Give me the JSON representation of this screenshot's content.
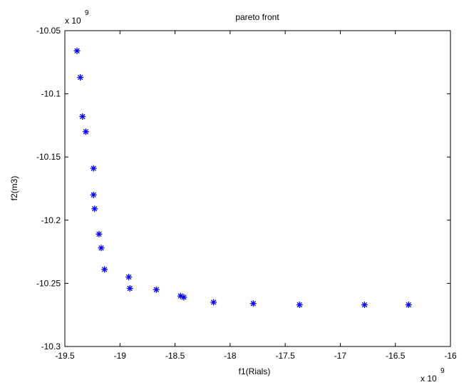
{
  "chart_data": {
    "type": "scatter",
    "title": "pareto front",
    "xlabel": "f1(Rials)",
    "ylabel": "f2(m3)",
    "x_multiplier_label": "x 10",
    "x_multiplier_exp": "9",
    "y_multiplier_label": "x 10",
    "y_multiplier_exp": "9",
    "xlim": [
      -19.5,
      -16
    ],
    "ylim": [
      -10.3,
      -10.05
    ],
    "xticks": [
      -19.5,
      -19,
      -18.5,
      -18,
      -17.5,
      -17,
      -16.5,
      -16
    ],
    "xtick_labels": [
      "-19.5",
      "-19",
      "-18.5",
      "-18",
      "-17.5",
      "-17",
      "-16.5",
      "-16"
    ],
    "yticks": [
      -10.05,
      -10.1,
      -10.15,
      -10.2,
      -10.25,
      -10.3
    ],
    "ytick_labels": [
      "-10.05",
      "-10.1",
      "-10.15",
      "-10.2",
      "-10.25",
      "-10.3"
    ],
    "grid": false,
    "marker_color": "#0000ff",
    "series": [
      {
        "x": [
          -19.39,
          -19.36,
          -19.34,
          -19.31,
          -19.24,
          -19.24,
          -19.23,
          -19.19,
          -19.17,
          -19.14,
          -18.92,
          -18.91,
          -18.67,
          -18.45,
          -18.42,
          -18.15,
          -17.79,
          -17.37,
          -16.78,
          -16.38
        ],
        "y": [
          -10.066,
          -10.087,
          -10.118,
          -10.13,
          -10.159,
          -10.18,
          -10.191,
          -10.211,
          -10.222,
          -10.239,
          -10.245,
          -10.254,
          -10.255,
          -10.26,
          -10.261,
          -10.265,
          -10.266,
          -10.267,
          -10.267,
          -10.267
        ]
      }
    ]
  }
}
